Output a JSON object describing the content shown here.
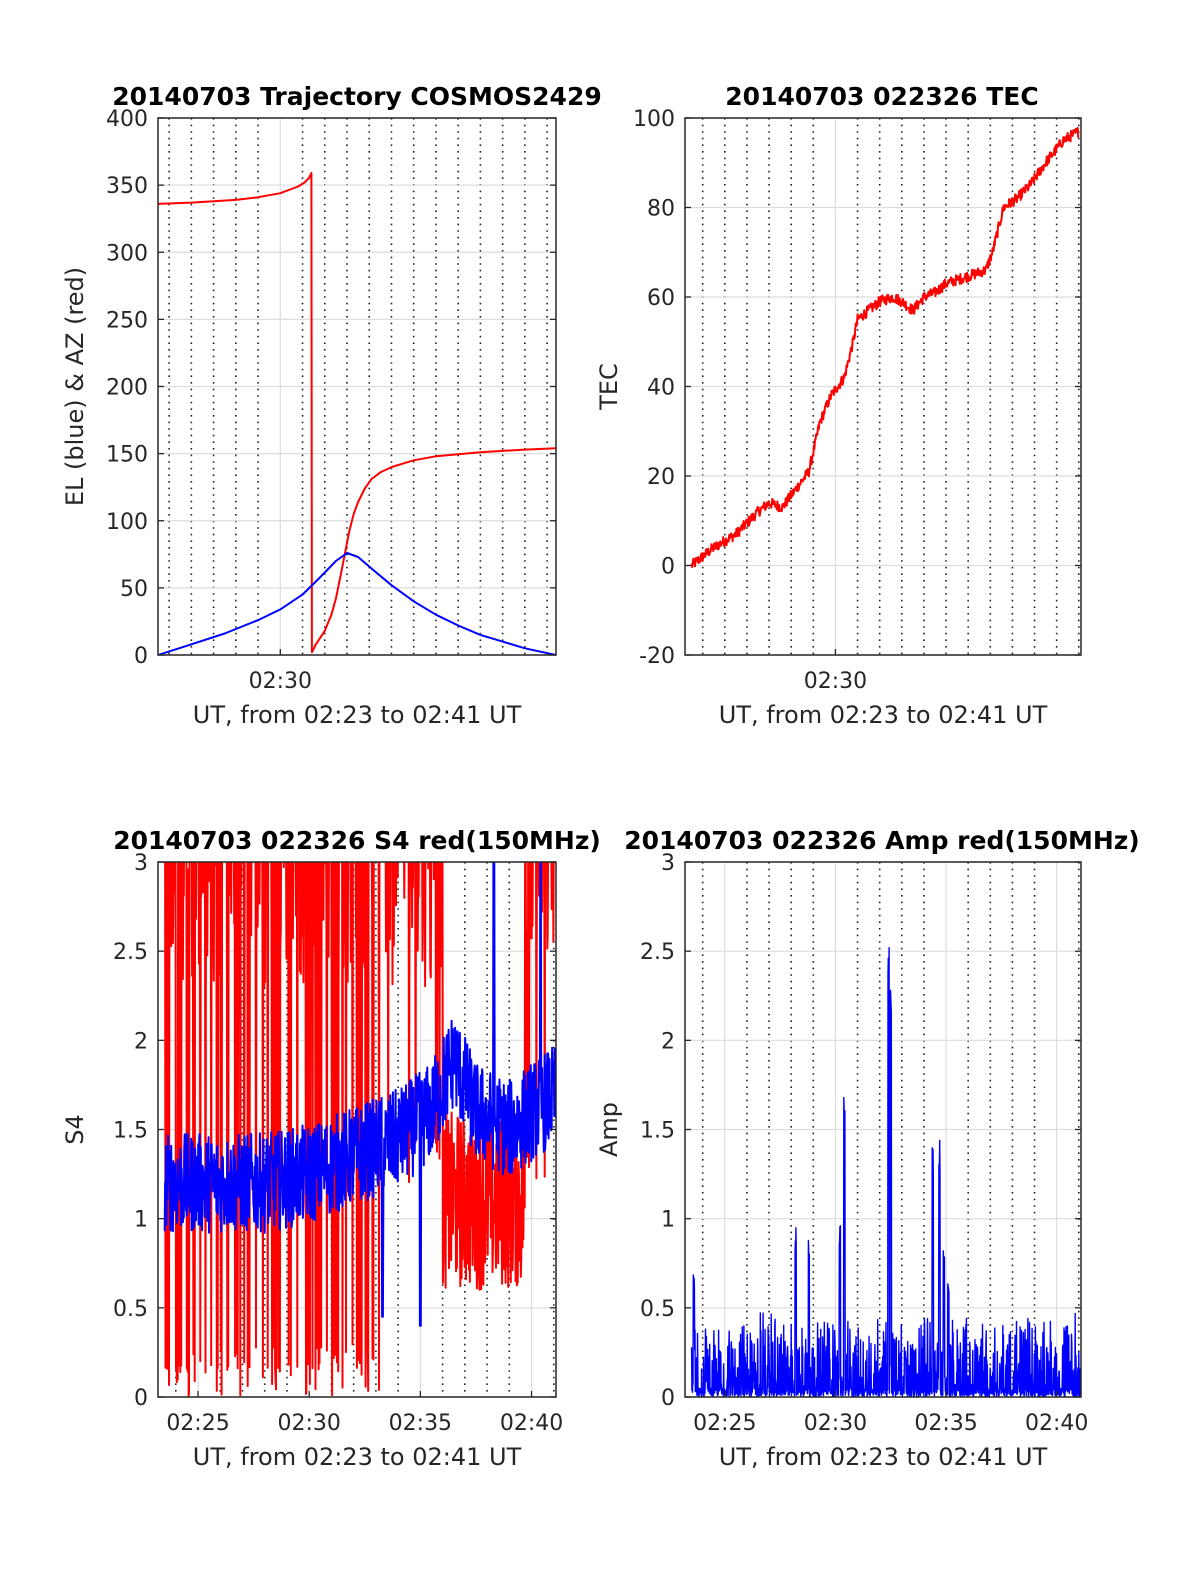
{
  "figure": {
    "date": "20140703"
  },
  "chart_data": [
    {
      "id": "trajectory",
      "type": "line",
      "title": "20140703 Trajectory COSMOS2429",
      "xlabel": "UT, from 02:23 to 02:41 UT",
      "ylabel": "EL (blue) & AZ (red)",
      "xlim": [
        24.5,
        42.4
      ],
      "ylim": [
        0,
        400
      ],
      "yticks": [
        0,
        50,
        100,
        150,
        200,
        250,
        300,
        350,
        400
      ],
      "ytick_labels": [
        "0",
        "50",
        "100",
        "150",
        "200",
        "250",
        "300",
        "350",
        "400"
      ],
      "xticks": [
        30
      ],
      "xtick_labels": [
        "02:30"
      ],
      "major_vgrid": [
        30
      ],
      "minor_vgrid_step": 1,
      "grid": true,
      "series": [
        {
          "name": "AZ",
          "color": "#ff0000",
          "points": [
            [
              24.5,
              336
            ],
            [
              26,
              337
            ],
            [
              27,
              338
            ],
            [
              28,
              339
            ],
            [
              29,
              341
            ],
            [
              30,
              344
            ],
            [
              30.8,
              349
            ],
            [
              31.1,
              352
            ],
            [
              31.3,
              355.5
            ],
            [
              31.4,
              359
            ],
            [
              31.42,
              2
            ],
            [
              31.6,
              8
            ],
            [
              32,
              18
            ],
            [
              32.3,
              30
            ],
            [
              32.5,
              42
            ],
            [
              32.7,
              58
            ],
            [
              32.9,
              75
            ],
            [
              33.1,
              92
            ],
            [
              33.3,
              105
            ],
            [
              33.5,
              114
            ],
            [
              33.8,
              124
            ],
            [
              34.1,
              131
            ],
            [
              34.5,
              136
            ],
            [
              35,
              140
            ],
            [
              36,
              145
            ],
            [
              37,
              148
            ],
            [
              38,
              149.5
            ],
            [
              39,
              151
            ],
            [
              40,
              152
            ],
            [
              41,
              153
            ],
            [
              42.4,
              154
            ]
          ]
        },
        {
          "name": "EL",
          "color": "#0000ff",
          "points": [
            [
              24.5,
              0
            ],
            [
              26,
              8
            ],
            [
              27.5,
              16
            ],
            [
              29,
              26
            ],
            [
              30,
              34
            ],
            [
              31,
              45
            ],
            [
              31.8,
              58
            ],
            [
              32.5,
              70
            ],
            [
              33,
              76
            ],
            [
              33.5,
              73
            ],
            [
              34.2,
              63
            ],
            [
              35,
              52
            ],
            [
              36,
              40
            ],
            [
              37,
              30
            ],
            [
              38,
              22
            ],
            [
              39,
              15
            ],
            [
              40,
              10
            ],
            [
              41,
              5
            ],
            [
              42.4,
              0
            ]
          ]
        }
      ]
    },
    {
      "id": "tec",
      "type": "line",
      "title": "20140703 022326 TEC",
      "xlabel": "UT, from 02:23 to 02:41 UT",
      "ylabel": "TEC",
      "xlim": [
        23.2,
        41.1
      ],
      "ylim": [
        -20,
        100
      ],
      "yticks": [
        -20,
        0,
        20,
        40,
        60,
        80,
        100
      ],
      "ytick_labels": [
        "-20",
        "0",
        "20",
        "40",
        "60",
        "80",
        "100"
      ],
      "xticks": [
        30
      ],
      "xtick_labels": [
        "02:30"
      ],
      "major_vgrid": [
        30
      ],
      "minor_vgrid_step": 1,
      "grid": true,
      "series": [
        {
          "name": "TEC",
          "color": "#ff0000",
          "points": [
            [
              23.5,
              0
            ],
            [
              24.5,
              4
            ],
            [
              25.5,
              7
            ],
            [
              26.5,
              12
            ],
            [
              27,
              14
            ],
            [
              27.6,
              13
            ],
            [
              28.2,
              17
            ],
            [
              28.8,
              21
            ],
            [
              29.3,
              32
            ],
            [
              29.8,
              38
            ],
            [
              30.4,
              42
            ],
            [
              30.8,
              50
            ],
            [
              31,
              55
            ],
            [
              31.5,
              57
            ],
            [
              32,
              59
            ],
            [
              32.6,
              60
            ],
            [
              33,
              59
            ],
            [
              33.5,
              57
            ],
            [
              34,
              60
            ],
            [
              34.5,
              61
            ],
            [
              35,
              63
            ],
            [
              35.6,
              64
            ],
            [
              36.2,
              65
            ],
            [
              36.8,
              66
            ],
            [
              37.1,
              70
            ],
            [
              37.6,
              80
            ],
            [
              38.2,
              82
            ],
            [
              38.8,
              85
            ],
            [
              39.5,
              90
            ],
            [
              40.3,
              95
            ],
            [
              41,
              97
            ]
          ],
          "noise": 1.2
        }
      ]
    },
    {
      "id": "s4",
      "type": "line",
      "title": "20140703 022326 S4 red(150MHz)",
      "xlabel": "UT, from 02:23 to 02:41 UT",
      "ylabel": "S4",
      "xlim": [
        23.2,
        41.1
      ],
      "ylim": [
        0,
        3
      ],
      "yticks": [
        0,
        0.5,
        1,
        1.5,
        2,
        2.5,
        3
      ],
      "ytick_labels": [
        "0",
        "0.5",
        "1",
        "1.5",
        "2",
        "2.5",
        "3"
      ],
      "xticks": [
        25,
        30,
        35,
        40
      ],
      "xtick_labels": [
        "02:25",
        "02:30",
        "02:35",
        "02:40"
      ],
      "major_vgrid": [
        25,
        30,
        35,
        40
      ],
      "minor_vgrid_step": 1,
      "grid": true,
      "series": [
        {
          "name": "S4 red",
          "color": "#ff0000",
          "x_range": [
            23.5,
            41.1
          ],
          "samples": 900,
          "segments": [
            {
              "from": 23.5,
              "to": 33.4,
              "pattern": "saturated",
              "level": 3,
              "dip_min": 0,
              "dip_prob": 0.12
            },
            {
              "from": 33.4,
              "to": 36.0,
              "pattern": "saturated",
              "level": 3,
              "dip_min": 1.2,
              "dip_prob": 0.05
            },
            {
              "from": 36.0,
              "to": 39.7,
              "pattern": "band",
              "low": 0.6,
              "high": 1.6
            },
            {
              "from": 39.7,
              "to": 41.1,
              "pattern": "saturated",
              "level": 3,
              "dip_min": 1.2,
              "dip_prob": 0.1
            }
          ]
        },
        {
          "name": "S4 blue",
          "color": "#0000ff",
          "x_range": [
            23.5,
            41.1
          ],
          "samples": 900,
          "baseline": [
            [
              23.5,
              1.2
            ],
            [
              26,
              1.2
            ],
            [
              28,
              1.2
            ],
            [
              30,
              1.25
            ],
            [
              32,
              1.35
            ],
            [
              34,
              1.45
            ],
            [
              35.5,
              1.6
            ],
            [
              36.5,
              1.9
            ],
            [
              37.5,
              1.6
            ],
            [
              39,
              1.5
            ],
            [
              40,
              1.6
            ],
            [
              41.1,
              1.7
            ]
          ],
          "noise": 0.28,
          "spikes": [
            [
              33.3,
              0.45
            ],
            [
              35,
              0.4
            ],
            [
              38.3,
              3
            ],
            [
              40.4,
              3
            ]
          ]
        }
      ]
    },
    {
      "id": "amp",
      "type": "line",
      "title": "20140703 022326 Amp red(150MHz)",
      "xlabel": "UT, from 02:23 to 02:41 UT",
      "ylabel": "Amp",
      "xlim": [
        23.2,
        41.1
      ],
      "ylim": [
        0,
        3
      ],
      "yticks": [
        0,
        0.5,
        1,
        1.5,
        2,
        2.5,
        3
      ],
      "ytick_labels": [
        "0",
        "0.5",
        "1",
        "1.5",
        "2",
        "2.5",
        "3"
      ],
      "xticks": [
        25,
        30,
        35,
        40
      ],
      "xtick_labels": [
        "02:25",
        "02:30",
        "02:35",
        "02:40"
      ],
      "major_vgrid": [
        25,
        30,
        35,
        40
      ],
      "minor_vgrid_step": 1,
      "grid": true,
      "series": [
        {
          "name": "Amp",
          "color": "#0000ff",
          "x_range": [
            23.5,
            41.1
          ],
          "samples": 1400,
          "envelope": 0.45,
          "spikes": [
            [
              23.6,
              0.7
            ],
            [
              28.2,
              0.96
            ],
            [
              28.8,
              0.92
            ],
            [
              30.2,
              1.0
            ],
            [
              30.4,
              1.68
            ],
            [
              32.4,
              2.52
            ],
            [
              32.5,
              2.3
            ],
            [
              34.4,
              1.46
            ],
            [
              34.7,
              1.44
            ],
            [
              34.9,
              0.85
            ],
            [
              35.1,
              0.65
            ]
          ]
        }
      ]
    }
  ]
}
